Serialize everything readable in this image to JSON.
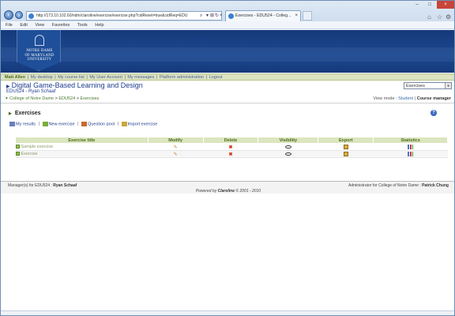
{
  "browser": {
    "address": "http://173.10.102.60/ndm/claroline/exercise/exercise.php?cidReset=true&cidReq=EDU",
    "tab_title": "Exercises - EDU524 - Colleg...",
    "menu": [
      "File",
      "Edit",
      "View",
      "Favorites",
      "Tools",
      "Help"
    ]
  },
  "banner": {
    "logo_lines": [
      "NOTRE DAME",
      "OF MARYLAND",
      "UNIVERSITY"
    ]
  },
  "userbar": {
    "user": "Matt Allen",
    "links": [
      "My desktop",
      "My course list",
      "My User Account",
      "My messages",
      "Platform administration",
      "Logout"
    ]
  },
  "course": {
    "title": "Digital Game-Based Learning and Design",
    "subtitle": "EDU524 - Ryan Schaaf"
  },
  "tool_select": {
    "value": "Exercises"
  },
  "breadcrumb": {
    "items": [
      "College of Notre Dame",
      "EDU524",
      "Exercises"
    ]
  },
  "viewmode": {
    "label": "View mode :",
    "student": "Student",
    "manager": "Course manager"
  },
  "section": {
    "title": "Exercises"
  },
  "actions": {
    "my_results": "My results",
    "new_exercise": "New exercise",
    "question_pool": "Question pool",
    "import_exercise": "Import exercise"
  },
  "table": {
    "headers": [
      "Exercise title",
      "Modify",
      "Delete",
      "Visibility",
      "Export",
      "Statistics"
    ],
    "rows": [
      {
        "title": "Sample exercise"
      },
      {
        "title": "Exercise"
      }
    ]
  },
  "footer": {
    "left_label": "Manager(s) for EDU524 :",
    "left_name": "Ryan Schaaf",
    "right_label": "Administrator for College of Notre Dame :",
    "right_name": "Patrick Chung",
    "powered_prefix": "Powered by",
    "powered_name": "Claroline",
    "powered_suffix": "© 2001 - 2010"
  },
  "colors": {
    "banner": "#1b4891",
    "userbar": "#dbe3c1",
    "table_header": "#dbe5bf",
    "link": "#1f3d8f"
  }
}
